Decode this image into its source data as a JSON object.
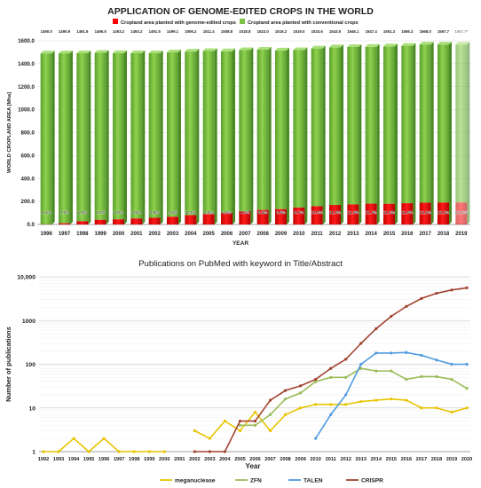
{
  "chart_data": [
    {
      "type": "bar",
      "title": "APPLICATION OF GENOME-EDITED CROPS IN THE WORLD",
      "xlabel": "YEAR",
      "ylabel": "WORLD CROPLAND AREA [Mha]",
      "ylim": [
        0,
        1600
      ],
      "yticks": [
        "0.0",
        "200.0",
        "400.0",
        "600.0",
        "800.0",
        "1000.0",
        "1200.0",
        "1400.0",
        "1600.0"
      ],
      "legend_position": "top",
      "stacked": true,
      "categories": [
        "1996",
        "1997",
        "1998",
        "1999",
        "2000",
        "2001",
        "2002",
        "2003",
        "2004",
        "2005",
        "2006",
        "2007",
        "2008",
        "2009",
        "2010",
        "2011",
        "2012",
        "2013",
        "2014",
        "2015",
        "2016",
        "2017",
        "2018",
        "2019"
      ],
      "totals": [
        "1490.0",
        "1490.9",
        "1491.6",
        "1495.5",
        "1493.2",
        "1493.2",
        "1491.5",
        "1499.1",
        "1506.2",
        "1511.4",
        "1508.8",
        "1518.8",
        "1523.0",
        "1516.2",
        "1519.0",
        "1533.6",
        "1543.5",
        "1546.1",
        "1547.4",
        "1551.3",
        "1556.3",
        "1568.0",
        "1567.7",
        "1567.7*"
      ],
      "percent_labels": [
        "0.1%",
        "0.7%",
        "1.9%",
        "2.7%",
        "3.0%",
        "3.5%",
        "3.9%",
        "4.5%",
        "5.4%",
        "6.0%",
        "6.8%",
        "7.6%",
        "8.3%",
        "8.8%",
        "9.7%",
        "10.4%",
        "11.0%",
        "11.3%",
        "11.7%",
        "11.6%",
        "11.9%",
        "12.1%",
        "12.2%",
        "12.2%*"
      ],
      "series": [
        {
          "name": "Cropland area planted with genome-edited crops",
          "color": "#ff0000"
        },
        {
          "name": "Cropland area planted with conventional crops",
          "color": "#7cc242"
        }
      ]
    },
    {
      "type": "line",
      "title": "Publications on PubMed with keyword in Title/Abstract",
      "xlabel": "Year",
      "ylabel": "Number of publications",
      "yscale": "log",
      "ylim": [
        1,
        10000
      ],
      "yticks": [
        "1",
        "10",
        "100",
        "1000",
        "10,000"
      ],
      "legend_position": "bottom",
      "grid": true,
      "x": [
        "1992",
        "1993",
        "1994",
        "1995",
        "1996",
        "1997",
        "1998",
        "1999",
        "2000",
        "2001",
        "2002",
        "2003",
        "2004",
        "2005",
        "2006",
        "2007",
        "2008",
        "2009",
        "2010",
        "2011",
        "2012",
        "2013",
        "2014",
        "2015",
        "2016",
        "2017",
        "2018",
        "2019",
        "2020"
      ],
      "series": [
        {
          "name": "meganuclease",
          "color": "#e8c400",
          "values": [
            1,
            1,
            2,
            1,
            2,
            1,
            1,
            1,
            1,
            null,
            3,
            2,
            5,
            3,
            8,
            3,
            7,
            10,
            12,
            12,
            12,
            14,
            15,
            16,
            15,
            10,
            10,
            8,
            10
          ]
        },
        {
          "name": "ZFN",
          "color": "#9bbb59",
          "values": [
            null,
            null,
            null,
            null,
            null,
            null,
            null,
            null,
            null,
            null,
            null,
            null,
            null,
            4,
            4,
            7,
            16,
            22,
            40,
            50,
            50,
            80,
            70,
            70,
            45,
            52,
            52,
            45,
            28
          ]
        },
        {
          "name": "TALEN",
          "color": "#4f9be0",
          "values": [
            null,
            null,
            null,
            null,
            null,
            null,
            null,
            null,
            null,
            null,
            null,
            null,
            null,
            null,
            null,
            null,
            null,
            null,
            2,
            7,
            20,
            100,
            180,
            180,
            185,
            160,
            125,
            100,
            100
          ]
        },
        {
          "name": "CRISPR",
          "color": "#a0432f",
          "values": [
            null,
            null,
            null,
            null,
            null,
            null,
            null,
            null,
            null,
            null,
            1,
            1,
            1,
            5,
            5,
            15,
            25,
            32,
            45,
            80,
            130,
            300,
            650,
            1250,
            2100,
            3200,
            4200,
            5000,
            5600
          ]
        }
      ]
    }
  ]
}
